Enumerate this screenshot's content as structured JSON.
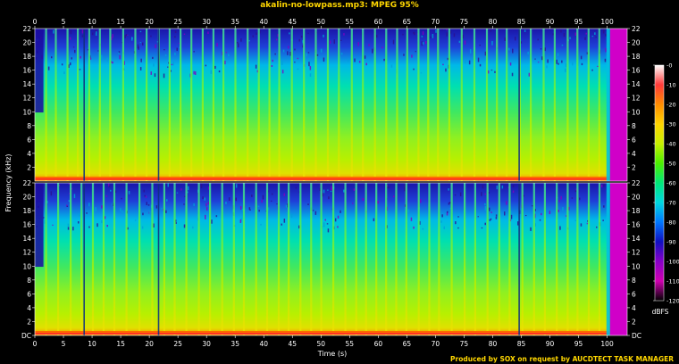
{
  "title": "akalin-no-lowpass.mp3: MPEG 95%",
  "footer": "Produced by SOX on request by AUCDTECT TASK MANAGER",
  "chart_data": {
    "type": "heatmap",
    "xlabel": "Time (s)",
    "ylabel": "Frequency (kHz)",
    "xlim": [
      0,
      103.5
    ],
    "ylim": [
      0,
      22
    ],
    "x_ticks": [
      "0",
      "5",
      "10",
      "15",
      "20",
      "25",
      "30",
      "35",
      "40",
      "45",
      "50",
      "55",
      "60",
      "65",
      "70",
      "75",
      "80",
      "85",
      "90",
      "95",
      "100"
    ],
    "x_tick_values": [
      0,
      5,
      10,
      15,
      20,
      25,
      30,
      35,
      40,
      45,
      50,
      55,
      60,
      65,
      70,
      75,
      80,
      85,
      90,
      95,
      100
    ],
    "y_ticks_left": [
      "DC",
      "2",
      "4",
      "6",
      "8",
      "10",
      "12",
      "14",
      "16",
      "18",
      "20",
      "22"
    ],
    "y_ticks_right": [
      "DC",
      "2",
      "4",
      "6",
      "8",
      "10",
      "12",
      "14",
      "16",
      "18",
      "20",
      "22"
    ],
    "y_tick_values": [
      0,
      2,
      4,
      6,
      8,
      10,
      12,
      14,
      16,
      18,
      20,
      22
    ],
    "channels": 2,
    "colorbar": {
      "label": "dBFS",
      "ticks": [
        "-0",
        "-10",
        "-20",
        "-30",
        "-40",
        "-50",
        "-60",
        "-70",
        "-80",
        "-90",
        "-100",
        "-110",
        "-120"
      ],
      "tick_values": [
        0,
        -10,
        -20,
        -30,
        -40,
        -50,
        -60,
        -70,
        -80,
        -90,
        -100,
        -110,
        -120
      ],
      "colors": [
        "#ffffff",
        "#ff3a3a",
        "#ff8c00",
        "#ffd400",
        "#c8f000",
        "#4cf000",
        "#00e878",
        "#00d8e0",
        "#0078ff",
        "#1010c0",
        "#8800c8",
        "#d000b0",
        "#000000"
      ]
    },
    "silence_end_s": 100.5
  }
}
